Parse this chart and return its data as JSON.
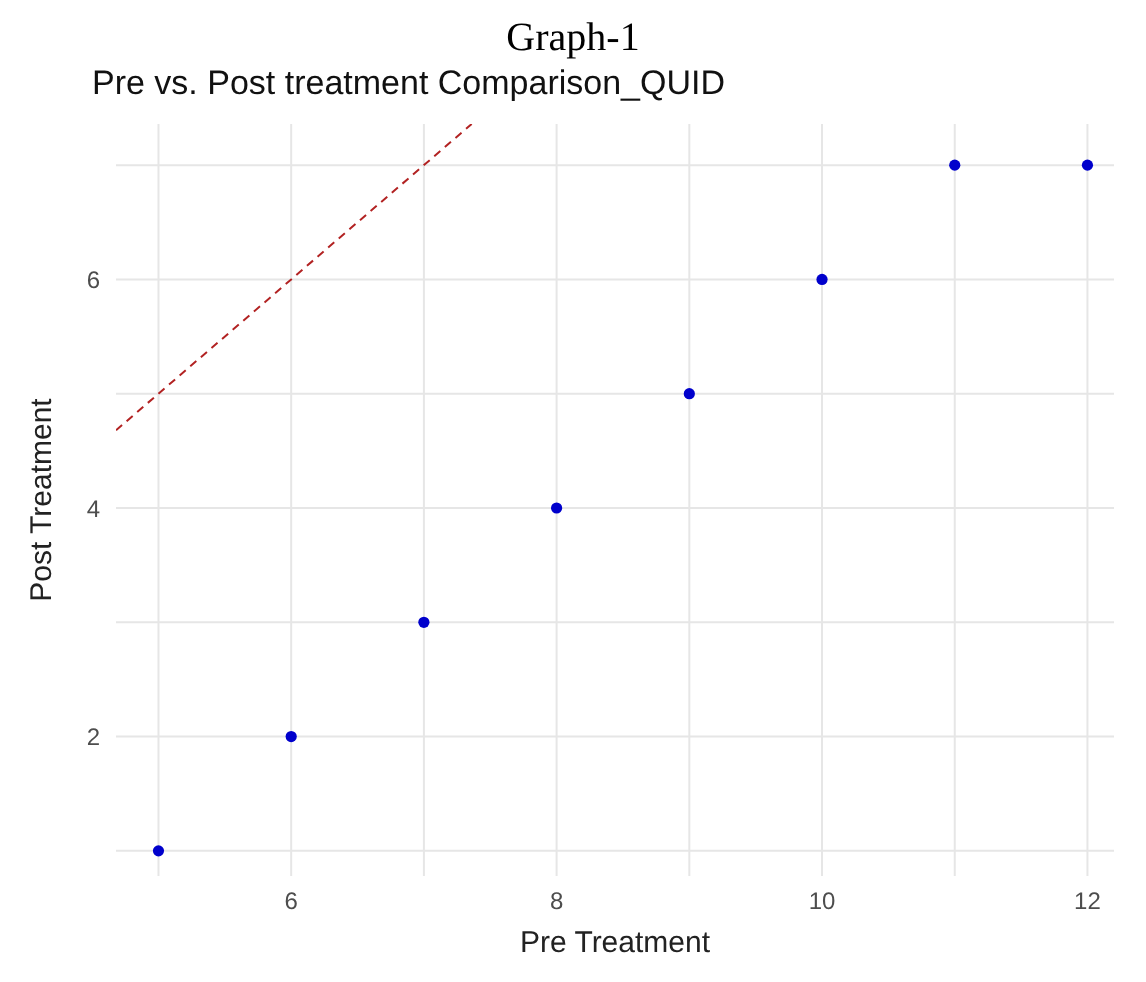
{
  "chart_data": {
    "type": "scatter",
    "title": "Graph-1",
    "subtitle": "Pre vs. Post treatment Comparison_QUID",
    "xlabel": "Pre Treatment",
    "ylabel": "Post Treatment",
    "series": [
      {
        "color": "#0000cc",
        "marker": "circle",
        "x": [
          5,
          6,
          7,
          8,
          9,
          10,
          11,
          12
        ],
        "values": [
          1,
          2,
          3,
          4,
          5,
          6,
          7,
          7
        ]
      },
      {
        "type": "line",
        "color": "#b22222",
        "line_style": "dashed",
        "marker": "none",
        "x": [
          4.68,
          7.36
        ],
        "values": [
          4.68,
          7.36
        ]
      }
    ],
    "xlim": [
      4.68,
      12.2
    ],
    "ylim": [
      0.78,
      7.36
    ],
    "xticks": [
      {
        "value": 5,
        "label": null
      },
      6,
      {
        "value": 7,
        "label": null
      },
      8,
      {
        "value": 9,
        "label": null
      },
      10,
      {
        "value": 11,
        "label": null
      },
      12
    ],
    "yticks": [
      {
        "value": 1,
        "label": null
      },
      2,
      {
        "value": 3,
        "label": null
      },
      4,
      {
        "value": 5,
        "label": null
      },
      6,
      {
        "value": 7,
        "label": null
      }
    ],
    "grid": true,
    "legend": false
  }
}
